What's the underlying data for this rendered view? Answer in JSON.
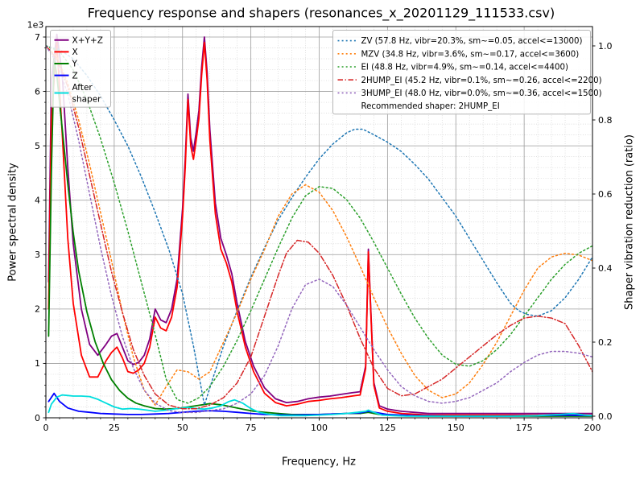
{
  "chart_data": {
    "type": "line",
    "title": "Frequency response and shapers (resonances_x_20201129_111533.csv)",
    "x_axis": {
      "label": "Frequency, Hz",
      "min": 0,
      "max": 200,
      "tick_values": [
        0,
        25,
        50,
        75,
        100,
        125,
        150,
        175,
        200
      ],
      "tick_labels": [
        "0",
        "25",
        "50",
        "75",
        "100",
        "125",
        "150",
        "175",
        "200"
      ],
      "major_step": 25,
      "minor_step": 5
    },
    "left_axis": {
      "label": "Power spectral density",
      "offset_text": "1e3",
      "min": 0,
      "max": 7,
      "tick_values": [
        0,
        1,
        2,
        3,
        4,
        5,
        6,
        7
      ],
      "tick_labels": [
        "0",
        "1",
        "2",
        "3",
        "4",
        "5",
        "6",
        "7"
      ],
      "minor_step": 0.2,
      "units_multiplier": 1000
    },
    "right_axis": {
      "label": "Shaper vibration reduction (ratio)",
      "min": 0.0,
      "max": 1.0,
      "tick_values": [
        0.0,
        0.2,
        0.4,
        0.6,
        0.8,
        1.0
      ],
      "tick_labels": [
        "0.0",
        "0.2",
        "0.4",
        "0.6",
        "0.8",
        "1.0"
      ]
    },
    "grid": {
      "major": true,
      "minor": true,
      "major_color": "#9b9b9b",
      "minor_color": "#d3d3d3"
    },
    "psd_series": [
      {
        "name": "X+Y+Z",
        "legend_lines": [
          "X+Y+Z"
        ],
        "color": "#800080",
        "style": "solid",
        "axis": "left",
        "x": [
          1,
          2,
          4,
          6,
          8,
          10,
          13,
          16,
          19,
          22,
          24,
          26,
          28,
          30,
          32,
          34,
          36,
          38,
          40,
          42,
          44,
          46,
          48,
          50,
          51,
          52,
          53,
          54,
          55,
          56,
          57,
          58,
          59,
          60,
          62,
          64,
          66,
          68,
          70,
          73,
          76,
          80,
          84,
          88,
          92,
          96,
          100,
          104,
          108,
          112,
          115,
          117,
          118,
          119,
          120,
          122,
          125,
          130,
          140,
          150,
          160,
          170,
          180,
          190,
          200
        ],
        "y": [
          2.5,
          6.2,
          7.05,
          6.3,
          4.6,
          3.2,
          2.0,
          1.35,
          1.15,
          1.35,
          1.5,
          1.55,
          1.3,
          1.05,
          0.98,
          1.02,
          1.15,
          1.45,
          2.0,
          1.8,
          1.75,
          2.0,
          2.55,
          3.85,
          4.75,
          5.95,
          5.15,
          4.9,
          5.25,
          5.65,
          6.45,
          7.0,
          6.35,
          5.3,
          3.95,
          3.3,
          3.0,
          2.65,
          2.1,
          1.4,
          0.95,
          0.55,
          0.35,
          0.28,
          0.3,
          0.35,
          0.38,
          0.4,
          0.43,
          0.46,
          0.48,
          0.95,
          3.1,
          1.85,
          0.65,
          0.22,
          0.16,
          0.12,
          0.08,
          0.08,
          0.08,
          0.08,
          0.08,
          0.08,
          0.08
        ]
      },
      {
        "name": "X",
        "legend_lines": [
          "X"
        ],
        "color": "#ff0000",
        "style": "solid",
        "axis": "left",
        "x": [
          1,
          2,
          4,
          6,
          8,
          10,
          13,
          16,
          19,
          22,
          24,
          26,
          28,
          30,
          32,
          34,
          36,
          38,
          40,
          42,
          44,
          46,
          48,
          50,
          51,
          52,
          53,
          54,
          55,
          56,
          57,
          58,
          59,
          60,
          62,
          64,
          66,
          68,
          70,
          73,
          76,
          80,
          84,
          88,
          92,
          96,
          100,
          104,
          108,
          112,
          115,
          117,
          118,
          119,
          120,
          122,
          125,
          130,
          140,
          150,
          160,
          170,
          180,
          190,
          200
        ],
        "y": [
          2.0,
          5.5,
          6.9,
          5.2,
          3.3,
          2.1,
          1.15,
          0.75,
          0.75,
          1.05,
          1.2,
          1.3,
          1.1,
          0.85,
          0.82,
          0.88,
          1.0,
          1.3,
          1.85,
          1.65,
          1.6,
          1.85,
          2.4,
          3.7,
          4.6,
          5.85,
          5.0,
          4.75,
          5.1,
          5.5,
          6.3,
          6.9,
          6.2,
          5.1,
          3.75,
          3.1,
          2.85,
          2.5,
          1.95,
          1.3,
          0.85,
          0.45,
          0.28,
          0.22,
          0.25,
          0.3,
          0.32,
          0.35,
          0.37,
          0.4,
          0.42,
          0.9,
          3.05,
          1.8,
          0.6,
          0.18,
          0.12,
          0.08,
          0.05,
          0.05,
          0.05,
          0.05,
          0.05,
          0.05,
          0.05
        ]
      },
      {
        "name": "Y",
        "legend_lines": [
          "Y"
        ],
        "color": "#008000",
        "style": "solid",
        "axis": "left",
        "x": [
          1,
          2,
          3,
          4,
          6,
          8,
          10,
          12,
          15,
          18,
          21,
          24,
          27,
          30,
          33,
          36,
          40,
          44,
          48,
          52,
          56,
          60,
          64,
          68,
          72,
          76,
          80,
          85,
          90,
          95,
          100,
          105,
          110,
          115,
          118,
          122,
          130,
          140,
          150,
          160,
          170,
          180,
          190,
          200
        ],
        "y": [
          1.5,
          4.5,
          6.6,
          6.3,
          5.3,
          4.3,
          3.4,
          2.7,
          1.95,
          1.4,
          1.0,
          0.7,
          0.5,
          0.36,
          0.27,
          0.22,
          0.17,
          0.16,
          0.17,
          0.2,
          0.23,
          0.26,
          0.24,
          0.2,
          0.16,
          0.12,
          0.1,
          0.08,
          0.06,
          0.06,
          0.06,
          0.07,
          0.08,
          0.08,
          0.1,
          0.06,
          0.04,
          0.03,
          0.03,
          0.03,
          0.03,
          0.03,
          0.03,
          0.03
        ]
      },
      {
        "name": "Z",
        "legend_lines": [
          "Z"
        ],
        "color": "#0000ff",
        "style": "solid",
        "axis": "left",
        "x": [
          1,
          3,
          5,
          8,
          12,
          16,
          20,
          25,
          30,
          35,
          40,
          45,
          50,
          55,
          60,
          65,
          70,
          75,
          80,
          90,
          100,
          110,
          115,
          118,
          125,
          135,
          150,
          165,
          180,
          190,
          200
        ],
        "y": [
          0.3,
          0.45,
          0.3,
          0.18,
          0.12,
          0.1,
          0.08,
          0.07,
          0.06,
          0.06,
          0.07,
          0.08,
          0.1,
          0.12,
          0.13,
          0.12,
          0.1,
          0.08,
          0.06,
          0.05,
          0.06,
          0.08,
          0.09,
          0.12,
          0.06,
          0.04,
          0.03,
          0.03,
          0.04,
          0.05,
          0.04
        ]
      },
      {
        "name": "After shaper",
        "legend_lines": [
          "After",
          "shaper"
        ],
        "color": "#00dede",
        "style": "solid",
        "axis": "left",
        "x": [
          1,
          2,
          4,
          6,
          8,
          10,
          13,
          16,
          19,
          22,
          25,
          28,
          31,
          34,
          37,
          40,
          44,
          48,
          52,
          55,
          58,
          61,
          64,
          67,
          69,
          72,
          75,
          78,
          82,
          86,
          90,
          95,
          100,
          105,
          110,
          114,
          117,
          118,
          120,
          123,
          127,
          132,
          140,
          150,
          160,
          170,
          180,
          188,
          193,
          197,
          200
        ],
        "y": [
          0.1,
          0.25,
          0.38,
          0.42,
          0.41,
          0.4,
          0.4,
          0.39,
          0.34,
          0.27,
          0.2,
          0.16,
          0.17,
          0.16,
          0.14,
          0.12,
          0.14,
          0.17,
          0.19,
          0.17,
          0.16,
          0.18,
          0.22,
          0.3,
          0.33,
          0.27,
          0.17,
          0.1,
          0.06,
          0.04,
          0.04,
          0.04,
          0.05,
          0.06,
          0.08,
          0.1,
          0.12,
          0.14,
          0.1,
          0.05,
          0.04,
          0.03,
          0.03,
          0.03,
          0.03,
          0.03,
          0.04,
          0.06,
          0.08,
          0.05,
          0.04
        ]
      }
    ],
    "shaper_series": [
      {
        "name": "ZV",
        "label": "ZV (57.8 Hz, vibr=20.3%, sm~=0.05, accel<=13000)",
        "freq_hz": 57.8,
        "vibr_pct": 20.3,
        "smoothing": 0.05,
        "max_accel": 13000,
        "color": "#1f77b4",
        "style": "dotted",
        "axis": "right",
        "x": [
          0,
          5,
          10,
          15,
          20,
          25,
          30,
          35,
          40,
          45,
          50,
          54,
          58,
          61,
          65,
          70,
          75,
          80,
          85,
          90,
          95,
          100,
          105,
          110,
          113,
          116,
          120,
          125,
          130,
          135,
          140,
          145,
          150,
          155,
          160,
          165,
          170,
          173,
          176,
          180,
          185,
          190,
          195,
          200
        ],
        "y": [
          1.0,
          0.99,
          0.965,
          0.92,
          0.865,
          0.8,
          0.73,
          0.645,
          0.55,
          0.45,
          0.33,
          0.19,
          0.03,
          0.1,
          0.19,
          0.285,
          0.375,
          0.455,
          0.53,
          0.59,
          0.645,
          0.695,
          0.735,
          0.765,
          0.775,
          0.775,
          0.76,
          0.74,
          0.715,
          0.68,
          0.64,
          0.59,
          0.54,
          0.48,
          0.42,
          0.36,
          0.305,
          0.285,
          0.275,
          0.27,
          0.285,
          0.32,
          0.37,
          0.43
        ]
      },
      {
        "name": "MZV",
        "label": "MZV (34.8 Hz, vibr=3.6%, sm~=0.17, accel<=3600)",
        "freq_hz": 34.8,
        "vibr_pct": 3.6,
        "smoothing": 0.17,
        "max_accel": 3600,
        "color": "#ff7f0e",
        "style": "dotted",
        "axis": "right",
        "x": [
          0,
          4,
          8,
          12,
          16,
          20,
          24,
          28,
          32,
          36,
          40,
          44,
          48,
          52,
          56,
          60,
          65,
          70,
          75,
          80,
          85,
          90,
          95,
          100,
          105,
          110,
          115,
          120,
          125,
          130,
          135,
          140,
          145,
          150,
          155,
          160,
          165,
          170,
          175,
          180,
          185,
          190,
          195,
          200
        ],
        "y": [
          1.0,
          0.97,
          0.9,
          0.8,
          0.68,
          0.55,
          0.42,
          0.28,
          0.16,
          0.07,
          0.03,
          0.08,
          0.125,
          0.12,
          0.1,
          0.12,
          0.2,
          0.28,
          0.37,
          0.45,
          0.54,
          0.6,
          0.625,
          0.605,
          0.555,
          0.485,
          0.405,
          0.32,
          0.24,
          0.17,
          0.11,
          0.07,
          0.05,
          0.06,
          0.09,
          0.14,
          0.2,
          0.27,
          0.34,
          0.4,
          0.43,
          0.44,
          0.435,
          0.42
        ]
      },
      {
        "name": "EI",
        "label": "EI (48.8 Hz, vibr=4.9%, sm~=0.14, accel<=4400)",
        "freq_hz": 48.8,
        "vibr_pct": 4.9,
        "smoothing": 0.14,
        "max_accel": 4400,
        "color": "#2ca02c",
        "style": "dotted",
        "axis": "right",
        "x": [
          0,
          5,
          10,
          15,
          20,
          25,
          30,
          35,
          40,
          44,
          48,
          52,
          56,
          60,
          65,
          70,
          75,
          80,
          85,
          90,
          95,
          100,
          105,
          110,
          115,
          120,
          125,
          130,
          135,
          140,
          145,
          150,
          155,
          160,
          165,
          170,
          175,
          180,
          185,
          190,
          195,
          200
        ],
        "y": [
          1.0,
          0.985,
          0.935,
          0.855,
          0.75,
          0.63,
          0.5,
          0.36,
          0.22,
          0.1,
          0.045,
          0.035,
          0.05,
          0.08,
          0.135,
          0.205,
          0.285,
          0.37,
          0.455,
          0.535,
          0.595,
          0.62,
          0.615,
          0.585,
          0.535,
          0.47,
          0.4,
          0.33,
          0.265,
          0.21,
          0.165,
          0.14,
          0.135,
          0.15,
          0.18,
          0.22,
          0.27,
          0.32,
          0.37,
          0.41,
          0.44,
          0.46
        ]
      },
      {
        "name": "2HUMP_EI",
        "label": "2HUMP_EI (45.2 Hz, vibr=0.1%, sm~=0.26, accel<=2200)",
        "freq_hz": 45.2,
        "vibr_pct": 0.1,
        "smoothing": 0.26,
        "max_accel": 2200,
        "color": "#d62728",
        "style": "dashdot",
        "axis": "right",
        "recommended": true,
        "x": [
          0,
          4,
          8,
          12,
          16,
          20,
          24,
          28,
          32,
          36,
          40,
          45,
          50,
          55,
          60,
          65,
          70,
          75,
          80,
          85,
          88,
          92,
          96,
          100,
          105,
          110,
          115,
          120,
          125,
          130,
          135,
          140,
          145,
          150,
          155,
          160,
          165,
          170,
          175,
          180,
          185,
          190,
          195,
          200
        ],
        "y": [
          1.0,
          0.965,
          0.89,
          0.78,
          0.65,
          0.52,
          0.39,
          0.28,
          0.18,
          0.11,
          0.06,
          0.03,
          0.02,
          0.02,
          0.03,
          0.05,
          0.09,
          0.16,
          0.27,
          0.38,
          0.44,
          0.475,
          0.47,
          0.44,
          0.38,
          0.3,
          0.21,
          0.13,
          0.075,
          0.055,
          0.06,
          0.08,
          0.1,
          0.13,
          0.16,
          0.19,
          0.22,
          0.245,
          0.265,
          0.27,
          0.265,
          0.25,
          0.19,
          0.12
        ]
      },
      {
        "name": "3HUMP_EI",
        "label": "3HUMP_EI (48.0 Hz, vibr=0.0%, sm~=0.36, accel<=1500)",
        "freq_hz": 48.0,
        "vibr_pct": 0.0,
        "smoothing": 0.36,
        "max_accel": 1500,
        "color": "#9467bd",
        "style": "dotted",
        "axis": "right",
        "x": [
          0,
          4,
          8,
          12,
          16,
          20,
          24,
          28,
          32,
          36,
          40,
          45,
          50,
          55,
          60,
          65,
          70,
          75,
          80,
          85,
          90,
          95,
          100,
          105,
          110,
          115,
          120,
          125,
          130,
          135,
          140,
          145,
          150,
          155,
          160,
          165,
          170,
          175,
          180,
          185,
          190,
          195,
          200
        ],
        "y": [
          1.0,
          0.955,
          0.87,
          0.745,
          0.6,
          0.455,
          0.325,
          0.215,
          0.13,
          0.07,
          0.035,
          0.015,
          0.01,
          0.01,
          0.015,
          0.02,
          0.035,
          0.06,
          0.11,
          0.19,
          0.29,
          0.355,
          0.37,
          0.35,
          0.3,
          0.24,
          0.18,
          0.125,
          0.08,
          0.055,
          0.04,
          0.035,
          0.04,
          0.05,
          0.07,
          0.09,
          0.12,
          0.145,
          0.165,
          0.175,
          0.175,
          0.17,
          0.16
        ]
      }
    ],
    "recommended_note": "Recommended shaper: 2HUMP_EI",
    "legend_positions": {
      "psd_legend": "upper-left",
      "shaper_legend": "upper-right"
    }
  }
}
